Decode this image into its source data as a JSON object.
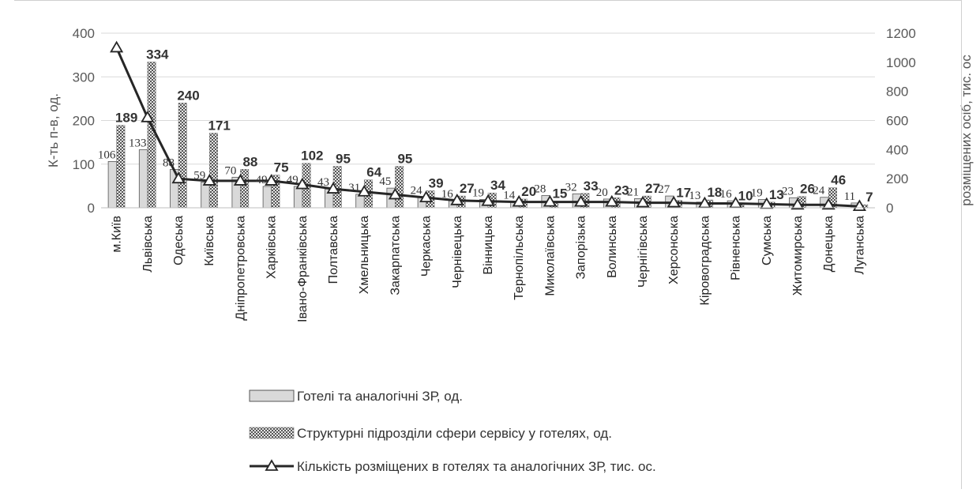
{
  "chart_data": {
    "type": "bar",
    "categories": [
      "м.Київ",
      "Львівська",
      "Одеська",
      "Київська",
      "Дніпропетровська",
      "Харківська",
      "Івано-Франківська",
      "Полтавська",
      "Хмельницька",
      "Закарпатська",
      "Черкаська",
      "Чернівецька",
      "Вінницька",
      "Тернопільська",
      "Миколаївська",
      "Запорізька",
      "Волинська",
      "Чернігівська",
      "Херсонська",
      "Кіровоградська",
      "Рівненська",
      "Сумська",
      "Житомирська",
      "Донецька",
      "Луганська"
    ],
    "series": [
      {
        "name": "Готелі та аналогічні ЗР, од.",
        "type": "bar",
        "axis": "left",
        "values": [
          106,
          133,
          88,
          59,
          70,
          49,
          49,
          43,
          31,
          45,
          24,
          16,
          19,
          14,
          28,
          32,
          20,
          21,
          27,
          13,
          16,
          19,
          23,
          24,
          11
        ]
      },
      {
        "name": "Структурні підрозділи сфери сервісу у готелях, од.",
        "type": "bar",
        "axis": "left",
        "values": [
          189,
          334,
          240,
          171,
          88,
          75,
          102,
          95,
          64,
          95,
          39,
          27,
          34,
          20,
          15,
          33,
          23,
          27,
          17,
          18,
          10,
          13,
          26,
          46,
          7
        ]
      },
      {
        "name": "Кількість розміщених в готелях та аналогічних ЗР, тис. ос.",
        "type": "line",
        "axis": "right",
        "values": [
          1100,
          620,
          200,
          185,
          185,
          185,
          160,
          130,
          110,
          90,
          70,
          50,
          45,
          40,
          40,
          40,
          40,
          35,
          35,
          30,
          30,
          25,
          20,
          20,
          10
        ]
      }
    ],
    "ylabel": "К-ть п-в, од.",
    "y2label": "розміщених осіб, тис. ос",
    "ylim": [
      0,
      400
    ],
    "y2lim": [
      0,
      1200
    ],
    "yticks": [
      "0",
      "100",
      "200",
      "300",
      "400"
    ],
    "y2ticks": [
      "0",
      "200",
      "400",
      "600",
      "800",
      "1000",
      "1200"
    ],
    "grid": true,
    "legend_position": "bottom",
    "colors": {
      "bar1": "#d9d9d9",
      "bar2": "#bfbfbf",
      "line": "#262626",
      "grid": "#d9d9d9",
      "axis_text": "#595959"
    }
  }
}
